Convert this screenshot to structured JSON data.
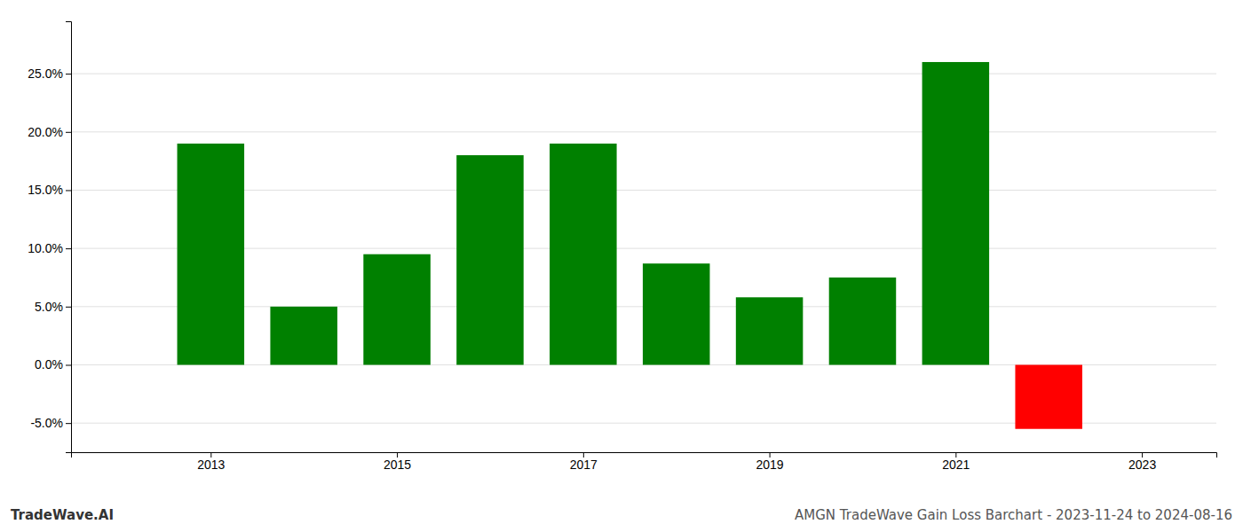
{
  "chart_data": {
    "type": "bar",
    "title": "AMGN TradeWave Gain Loss Barchart - 2023-11-24 to 2024-08-16",
    "annotations": [
      "TradeWave.AI"
    ],
    "x": [
      2013,
      2014,
      2015,
      2016,
      2017,
      2018,
      2019,
      2020,
      2021,
      2022
    ],
    "values": [
      0.19,
      0.05,
      0.095,
      0.18,
      0.19,
      0.087,
      0.058,
      0.075,
      0.26,
      -0.055
    ],
    "colors": [
      "#008000",
      "#008000",
      "#008000",
      "#008000",
      "#008000",
      "#008000",
      "#008000",
      "#008000",
      "#008000",
      "#ff0000"
    ],
    "xlim": [
      2011.5,
      2023.8
    ],
    "xticks": [
      2013,
      2015,
      2017,
      2019,
      2021,
      2023
    ],
    "ylim": [
      -0.075,
      0.295
    ],
    "yticks": [
      {
        "value": -0.05,
        "label": "-5.0%"
      },
      {
        "value": 0.0,
        "label": "0.0%"
      },
      {
        "value": 0.05,
        "label": "5.0%"
      },
      {
        "value": 0.1,
        "label": "10.0%"
      },
      {
        "value": 0.15,
        "label": "15.0%"
      },
      {
        "value": 0.2,
        "label": "20.0%"
      },
      {
        "value": 0.25,
        "label": "25.0%"
      }
    ],
    "grid": true
  }
}
